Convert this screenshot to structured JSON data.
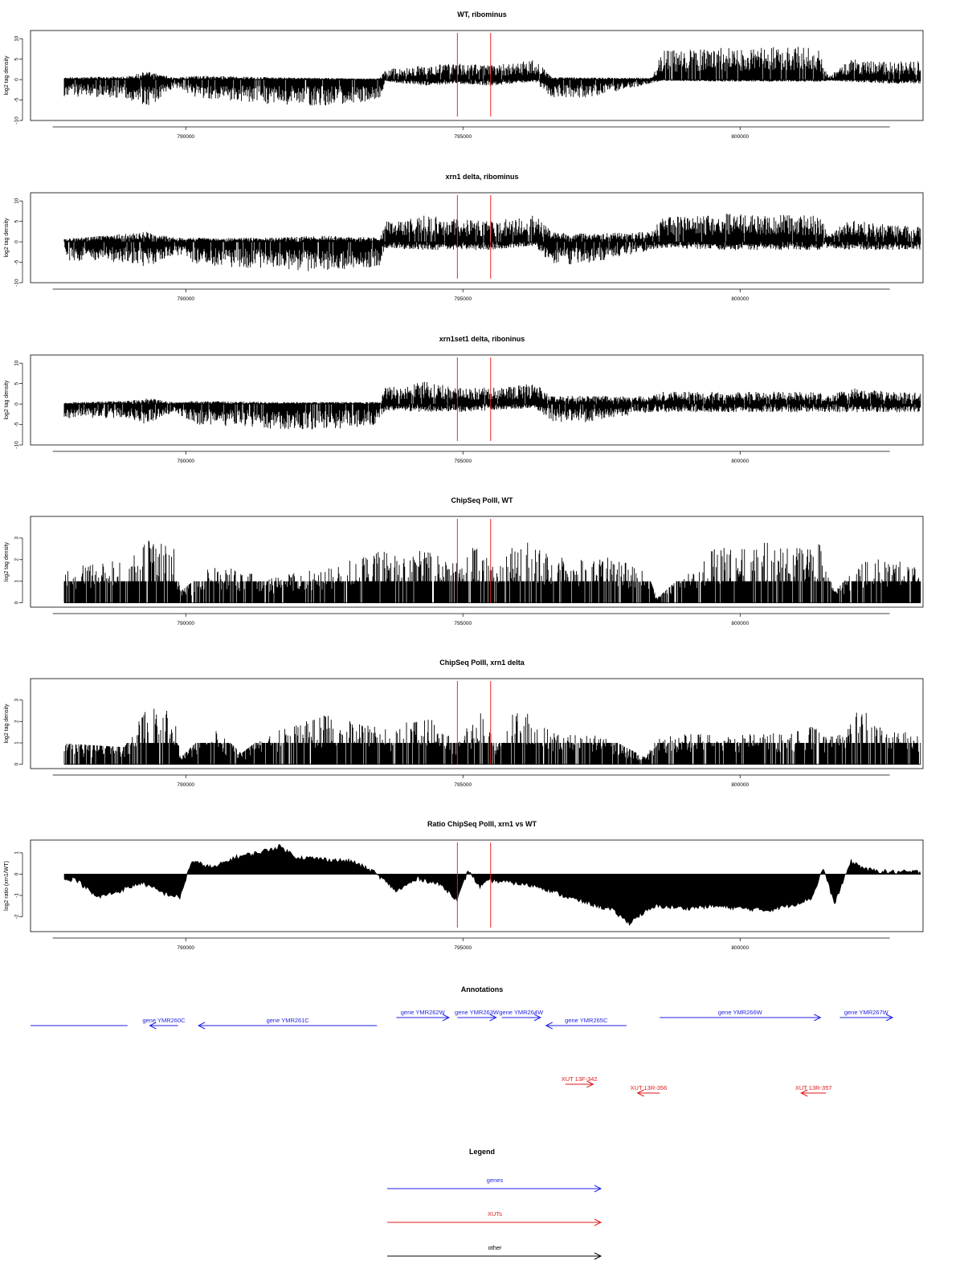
{
  "colors": {
    "genes": "#1f1fe6",
    "xuts": "#e01a1a",
    "other": "#000000",
    "marker": "#ee2222",
    "bars": "#000000"
  },
  "chart_data": [
    {
      "type": "bar",
      "title": "WT, ribominus",
      "ylabel": "log2 tag density",
      "ylim": [
        -10,
        12
      ],
      "yticks": [
        "-10",
        "-5",
        "0",
        "5",
        "10"
      ],
      "xlim": [
        787200,
        803300
      ],
      "xticks": [
        "790000",
        "795000",
        "800000"
      ],
      "markers_x": [
        794900,
        795500
      ],
      "profile": {
        "x": [
          787600,
          788900,
          789300,
          789800,
          790200,
          791500,
          792500,
          793500,
          793600,
          794300,
          794900,
          795500,
          796300,
          796600,
          797200,
          798400,
          798600,
          799800,
          801400,
          801600,
          802000,
          802700
        ],
        "pos": [
          0.5,
          0.8,
          2,
          0.5,
          1,
          0.6,
          0.4,
          0.3,
          2.5,
          3.5,
          4,
          3.5,
          5,
          0.6,
          0.5,
          0.5,
          7,
          8,
          8,
          0.8,
          5,
          4.5
        ],
        "neg": [
          -4,
          -4.5,
          -7,
          -2,
          -4.5,
          -6,
          -6.5,
          -5,
          -0.5,
          -1.5,
          -1,
          -1.5,
          -0.5,
          -4.5,
          -4.5,
          -1,
          -0.3,
          -0.5,
          -0.5,
          -0.3,
          -0.6,
          -1
        ]
      }
    },
    {
      "type": "bar",
      "title": "xrn1 delta, ribominus",
      "ylabel": "log2 tag density",
      "ylim": [
        -10,
        12
      ],
      "yticks": [
        "-10",
        "-5",
        "0",
        "5",
        "10"
      ],
      "xlim": [
        787200,
        803300
      ],
      "xticks": [
        "790000",
        "795000",
        "800000"
      ],
      "markers_x": [
        794900,
        795500
      ],
      "profile": {
        "x": [
          787600,
          788900,
          789300,
          789800,
          790200,
          791500,
          792500,
          793500,
          793600,
          794300,
          794900,
          795500,
          796300,
          796600,
          797200,
          798400,
          798600,
          799800,
          801400,
          801600,
          802000,
          802700
        ],
        "pos": [
          0.5,
          2,
          2.5,
          1,
          1,
          1,
          1.5,
          1,
          5,
          6.5,
          5.5,
          5,
          6.5,
          2.5,
          2,
          2.5,
          6,
          7,
          6.5,
          2.5,
          5.5,
          4
        ],
        "neg": [
          -4.5,
          -5,
          -6.5,
          -3,
          -5.5,
          -7,
          -7.5,
          -6,
          -1.5,
          -2,
          -2,
          -2,
          -1,
          -5.5,
          -5.5,
          -2,
          -1.5,
          -2,
          -2,
          -1.5,
          -2,
          -2
        ]
      }
    },
    {
      "type": "bar",
      "title": "xrn1set1 delta, riboninus",
      "ylabel": "log2 tag density",
      "ylim": [
        -10,
        12
      ],
      "yticks": [
        "-10",
        "-5",
        "0",
        "5",
        "10"
      ],
      "xlim": [
        787200,
        803300
      ],
      "xticks": [
        "790000",
        "795000",
        "800000"
      ],
      "markers_x": [
        794900,
        795500
      ],
      "profile": {
        "x": [
          787600,
          788900,
          789300,
          789800,
          790200,
          791500,
          792500,
          793500,
          793600,
          794300,
          794900,
          795500,
          796300,
          796600,
          797200,
          798400,
          798600,
          799800,
          801400,
          801600,
          802000,
          802700
        ],
        "pos": [
          0.3,
          0.8,
          1.5,
          0.5,
          0.8,
          0.5,
          0.5,
          0.5,
          4,
          5.5,
          4,
          4,
          5,
          2,
          2,
          2,
          3,
          3,
          3,
          2,
          4,
          3
        ],
        "neg": [
          -3.5,
          -3.5,
          -5,
          -2,
          -5,
          -6,
          -6.5,
          -5,
          -1.5,
          -2,
          -2,
          -1.5,
          -1,
          -4.5,
          -4.5,
          -2,
          -2,
          -2,
          -2,
          -2,
          -2,
          -2
        ]
      }
    },
    {
      "type": "bar",
      "title": "ChipSeq PolII, WT",
      "ylabel": "log2 tag density",
      "ylim": [
        -0.2,
        4
      ],
      "yticks": [
        "0",
        "1",
        "2",
        "3"
      ],
      "xlim": [
        787200,
        803300
      ],
      "xticks": [
        "790000",
        "795000",
        "800000"
      ],
      "markers_x": [
        794900,
        795500
      ],
      "profile": {
        "x": [
          787600,
          788900,
          789300,
          789800,
          789900,
          790500,
          791500,
          792500,
          793500,
          794300,
          794900,
          795300,
          795600,
          796000,
          796300,
          797000,
          797500,
          798300,
          798500,
          799500,
          800500,
          801200,
          801400,
          801700,
          802300,
          802700
        ],
        "pos": [
          1.6,
          2,
          3,
          2.5,
          0.5,
          1.8,
          1.2,
          1.6,
          2.4,
          2.4,
          2,
          2.8,
          1.6,
          3.3,
          2.5,
          2,
          2.2,
          1.6,
          0.2,
          2.5,
          2.8,
          2.5,
          3,
          0.5,
          2.2,
          2
        ]
      }
    },
    {
      "type": "bar",
      "title": "ChipSeq PolII, xrn1 delta",
      "ylabel": "log2 tag density",
      "ylim": [
        -0.2,
        4
      ],
      "yticks": [
        "0",
        "1",
        "2",
        "3"
      ],
      "xlim": [
        787200,
        803300
      ],
      "xticks": [
        "790000",
        "795000",
        "800000"
      ],
      "markers_x": [
        794900,
        795500
      ],
      "profile": {
        "x": [
          787600,
          788900,
          789300,
          789800,
          789900,
          790500,
          791000,
          791500,
          792500,
          793500,
          793700,
          794300,
          794900,
          795300,
          795600,
          796000,
          796300,
          796700,
          797500,
          798300,
          798500,
          799500,
          800500,
          801200,
          801400,
          801700,
          802200,
          802700
        ],
        "pos": [
          1,
          0.8,
          2.8,
          2.5,
          0.3,
          1.8,
          0.5,
          1.5,
          2.3,
          1.8,
          1.6,
          2.4,
          1,
          2.7,
          1,
          3,
          2,
          1.5,
          1.4,
          0.3,
          1.3,
          1.5,
          1.4,
          1.8,
          1.7,
          1.3,
          2.7,
          1.5
        ]
      }
    },
    {
      "type": "area",
      "title": "Ratio ChipSeq PolII, xrn1 vs WT",
      "ylabel": "log2 ratio (xrn1/WT)",
      "ylim": [
        -2.7,
        1.6
      ],
      "yticks": [
        "-2",
        "-1",
        "0",
        "1"
      ],
      "xlim": [
        787200,
        803300
      ],
      "xticks": [
        "790000",
        "795000",
        "800000"
      ],
      "markers_x": [
        794900,
        795500
      ],
      "series": [
        {
          "x": [
            787600,
            788000,
            788400,
            788800,
            789200,
            789600,
            789900,
            790100,
            790500,
            790900,
            791300,
            791700,
            792000,
            792500,
            793000,
            793400,
            793800,
            794200,
            794600,
            794900,
            795100,
            795300,
            795500,
            795900,
            796400,
            796900,
            797300,
            797700,
            798000,
            798200,
            798500,
            799000,
            799500,
            800000,
            800500,
            801000,
            801300,
            801500,
            801700,
            802000,
            802300,
            802700
          ],
          "y": [
            -0.4,
            -0.2,
            -1.1,
            -0.8,
            -0.4,
            -0.9,
            -1.1,
            0.6,
            0.3,
            0.8,
            1.0,
            1.3,
            0.8,
            0.7,
            0.6,
            0.1,
            -0.8,
            -0.2,
            -0.5,
            -1.2,
            0.2,
            -0.6,
            -0.3,
            -0.4,
            -0.6,
            -1.1,
            -1.4,
            -1.7,
            -2.3,
            -1.9,
            -1.5,
            -1.6,
            -1.5,
            -1.6,
            -1.7,
            -1.4,
            -1.1,
            0.3,
            -1.4,
            0.6,
            0.2,
            0.1
          ]
        }
      ]
    }
  ],
  "annotations": {
    "title": "Annotations",
    "genes": [
      {
        "label": "",
        "x1": 787200,
        "x2": 788950,
        "dir": "none",
        "row": 2
      },
      {
        "label": "gene YMR260C",
        "x1": 789350,
        "x2": 789860,
        "dir": "left",
        "row": 2
      },
      {
        "label": "gene YMR261C",
        "x1": 790230,
        "x2": 793450,
        "dir": "left",
        "row": 2
      },
      {
        "label": "gene YMR262W",
        "x1": 793800,
        "x2": 794750,
        "dir": "right",
        "row": 1
      },
      {
        "label": "gene YMR263W",
        "x1": 794900,
        "x2": 795600,
        "dir": "right",
        "row": 1
      },
      {
        "label": "gene YMR264W",
        "x1": 795700,
        "x2": 796400,
        "dir": "right",
        "row": 1
      },
      {
        "label": "gene YMR265C",
        "x1": 796500,
        "x2": 797950,
        "dir": "left",
        "row": 2
      },
      {
        "label": "gene YMR266W",
        "x1": 798550,
        "x2": 801450,
        "dir": "right",
        "row": 1
      },
      {
        "label": "gene YMR267W",
        "x1": 801800,
        "x2": 802750,
        "dir": "right",
        "row": 1
      }
    ],
    "xuts": [
      {
        "label": "XUT 13F-342",
        "x1": 796850,
        "x2": 797350,
        "dir": "right",
        "row": 1
      },
      {
        "label": "XUT 13R-356",
        "x1": 798150,
        "x2": 798550,
        "dir": "left",
        "row": 2
      },
      {
        "label": "XUT 13R-357",
        "x1": 801100,
        "x2": 801550,
        "dir": "left",
        "row": 2
      }
    ]
  },
  "legend": {
    "title": "Legend",
    "items": [
      {
        "label": "genes",
        "kind": "genes"
      },
      {
        "label": "XUTs",
        "kind": "xuts"
      },
      {
        "label": "other",
        "kind": "other"
      }
    ]
  }
}
